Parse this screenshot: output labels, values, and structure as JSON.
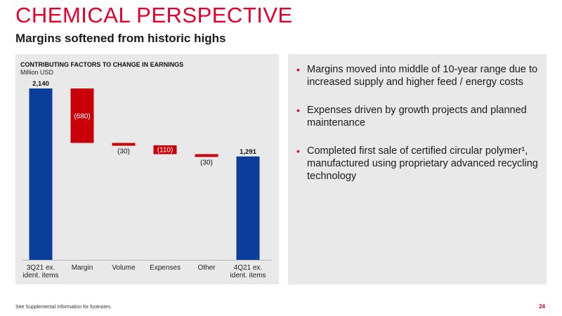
{
  "header": {
    "title": "CHEMICAL PERSPECTIVE",
    "subtitle": "Margins softened from historic highs"
  },
  "colors": {
    "brand_red": "#e4002b",
    "bar_blue": "#0a3e9a",
    "bar_red": "#c8000a",
    "panel_gray": "#e9e9e9"
  },
  "chart_data": {
    "type": "waterfall",
    "title": "CONTRIBUTING FACTORS TO CHANGE IN EARNINGS",
    "units": "Million USD",
    "categories": [
      "3Q21 ex.\nident. items",
      "Margin",
      "Volume",
      "Expenses",
      "Other",
      "4Q21 ex.\nident. items"
    ],
    "values": [
      2140,
      -680,
      -30,
      -110,
      -30,
      1291
    ],
    "bar_kinds": [
      "total",
      "delta",
      "delta",
      "delta",
      "delta",
      "total"
    ],
    "value_labels": [
      "2,140",
      "(680)",
      "(30)",
      "(110)",
      "(30)",
      "1,291"
    ],
    "ylim": [
      0,
      2140
    ],
    "grid": false,
    "legend": "none"
  },
  "bullets": [
    "Margins moved into middle of 10-year range due to increased supply and higher feed / energy costs",
    "Expenses driven by growth projects and planned maintenance",
    "Completed first sale of certified circular polymer¹, manufactured using proprietary advanced recycling technology"
  ],
  "bullet_marker": "•",
  "footer": {
    "footnote": "See Supplemental Information for footnotes.",
    "page_number": "24"
  }
}
